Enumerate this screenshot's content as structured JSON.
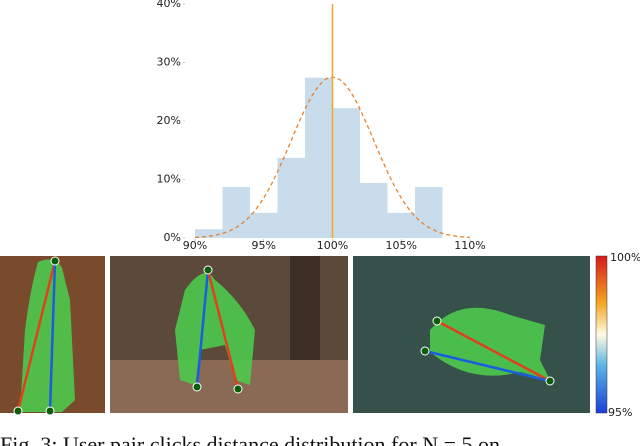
{
  "chart_data": {
    "type": "histogram",
    "bins": [
      90,
      92,
      94,
      96,
      98,
      100,
      102,
      104,
      106,
      108
    ],
    "values": [
      1.5,
      8.7,
      4.3,
      13.7,
      27.4,
      22.2,
      9.4,
      4.3,
      8.7
    ],
    "color": "#c9dcec",
    "xlim": [
      90,
      110
    ],
    "xticks": [
      {
        "value": 90,
        "label": "90%"
      },
      {
        "value": 95,
        "label": "95%"
      },
      {
        "value": 100,
        "label": "100%"
      },
      {
        "value": 105,
        "label": "105%"
      },
      {
        "value": 110,
        "label": "110%"
      }
    ],
    "ylim": [
      0,
      40
    ],
    "yticks": [
      {
        "value": 0,
        "label": "0%"
      },
      {
        "value": 10,
        "label": "10%"
      },
      {
        "value": 20,
        "label": "20%"
      },
      {
        "value": 30,
        "label": "30%"
      },
      {
        "value": 40,
        "label": "40%"
      }
    ],
    "reference_line": {
      "value": 100,
      "color": "#f5a623"
    },
    "fit": {
      "mean": 100,
      "std": 3,
      "peak": 27.5,
      "color": "#e8822a"
    }
  },
  "colorbar": {
    "top_label": "100%",
    "bottom_label": "95%"
  },
  "caption": "Fig. 3: User pair clicks distance distribution for N = 5 on"
}
